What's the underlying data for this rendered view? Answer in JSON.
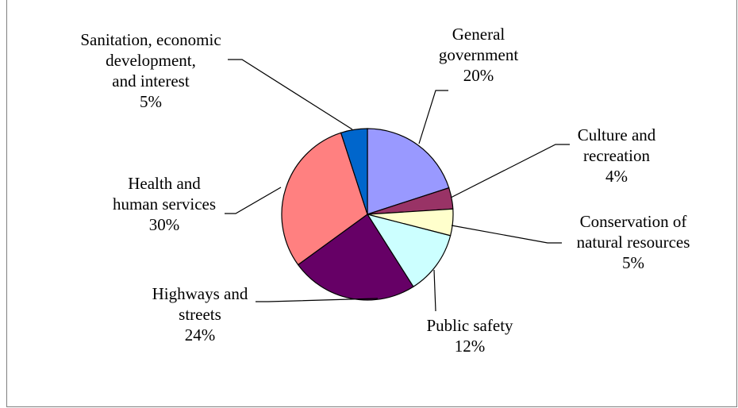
{
  "chart_data": {
    "type": "pie",
    "start_angle_deg": 0,
    "direction": "clockwise",
    "slices": [
      {
        "label": [
          "General",
          "government"
        ],
        "value": 20,
        "pct": "20%",
        "color": "#9999FF"
      },
      {
        "label": [
          "Culture and",
          "recreation"
        ],
        "value": 4,
        "pct": "4%",
        "color": "#993366"
      },
      {
        "label": [
          "Conservation of",
          "natural resources"
        ],
        "value": 5,
        "pct": "5%",
        "color": "#FFFFCC"
      },
      {
        "label": [
          "Public safety"
        ],
        "value": 12,
        "pct": "12%",
        "color": "#CCFFFF"
      },
      {
        "label": [
          "Highways and",
          "streets"
        ],
        "value": 24,
        "pct": "24%",
        "color": "#660066"
      },
      {
        "label": [
          "Health and",
          "human services"
        ],
        "value": 30,
        "pct": "30%",
        "color": "#FF8080"
      },
      {
        "label": [
          "Sanitation, economic",
          "development,",
          "and interest"
        ],
        "value": 5,
        "pct": "5%",
        "color": "#0066CC"
      }
    ]
  }
}
